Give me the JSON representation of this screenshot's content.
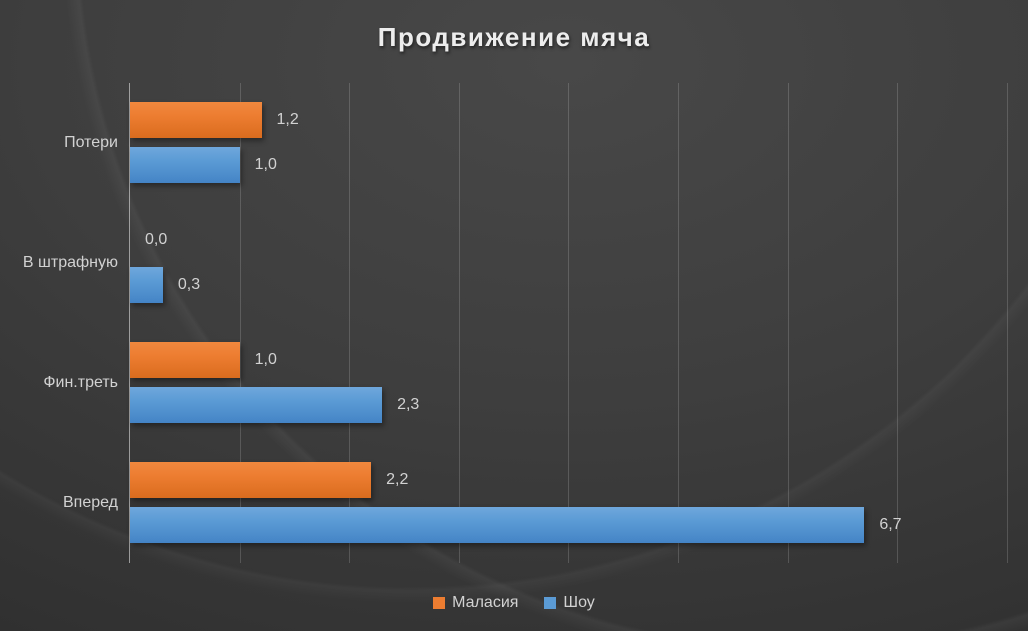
{
  "chart_data": {
    "type": "bar",
    "orientation": "horizontal",
    "title": "Продвижение мяча",
    "categories_top_to_bottom": [
      "Потери",
      "В штрафную",
      "Фин.треть",
      "Вперед"
    ],
    "series": [
      {
        "name": "Маласия",
        "color": "#ED7D31",
        "values": [
          1.2,
          0.0,
          1.0,
          2.2
        ],
        "value_labels": [
          "1,2",
          "0,0",
          "1,0",
          "2,2"
        ]
      },
      {
        "name": "Шоу",
        "color": "#5B9BD5",
        "values": [
          1.0,
          0.3,
          2.3,
          6.7
        ],
        "value_labels": [
          "1,0",
          "0,3",
          "2,3",
          "6,7"
        ]
      }
    ],
    "xlabel": "",
    "ylabel": "",
    "xlim": [
      0,
      8
    ],
    "gridline_interval": 1,
    "grid": true,
    "x_tick_labels_visible": false,
    "legend_position": "bottom",
    "number_format": "decimal comma, one decimal place"
  },
  "theme": {
    "background": "#3b3b3b",
    "title_color": "#ededed",
    "label_color": "#d2d2d2",
    "gridline_color": "rgba(255,255,255,0.16)",
    "axis_line_color": "rgba(255,255,255,0.5)"
  }
}
